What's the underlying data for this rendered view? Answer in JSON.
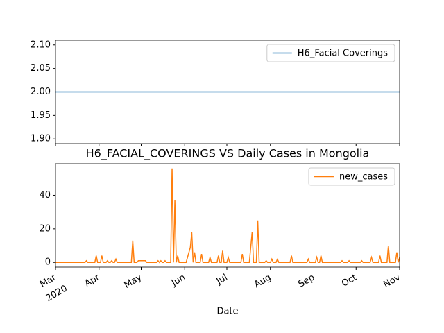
{
  "chart_data": [
    {
      "type": "line",
      "x": [
        0,
        245
      ],
      "series": [
        {
          "name": "H6_Facial Coverings",
          "color": "#1f77b4",
          "values": [
            2,
            2
          ]
        }
      ],
      "xlim": [
        0,
        245
      ],
      "ylim": [
        1.89,
        2.11
      ],
      "yticks": [
        {
          "value": 1.9,
          "label": "1.90"
        },
        1.95,
        {
          "value": 2.0,
          "label": "2.00"
        },
        2.05,
        {
          "value": 2.1,
          "label": "2.10"
        }
      ],
      "legend": "upper right"
    },
    {
      "type": "line",
      "title": "H6_FACIAL_COVERINGS VS Daily Cases in Mongolia",
      "xlabel": "Date",
      "x_year_label": "2020",
      "x": [
        0,
        21,
        22,
        23,
        28,
        29,
        30,
        32,
        33,
        34,
        36,
        37,
        38,
        39,
        40,
        41,
        42,
        43,
        44,
        54,
        55,
        56,
        58,
        59,
        64,
        65,
        72,
        73,
        74,
        75,
        76,
        77,
        78,
        79,
        82,
        83,
        84,
        85,
        86,
        87,
        88,
        93,
        96,
        97,
        98,
        99,
        100,
        103,
        104,
        105,
        109,
        110,
        111,
        115,
        116,
        117,
        118,
        119,
        120,
        122,
        123,
        124,
        132,
        133,
        134,
        138,
        140,
        141,
        143,
        144,
        145,
        149,
        150,
        151,
        153,
        154,
        155,
        157,
        158,
        159,
        167,
        168,
        169,
        179,
        180,
        181,
        185,
        186,
        187,
        188,
        189,
        190,
        203,
        204,
        205,
        208,
        209,
        210,
        217,
        218,
        219,
        224,
        225,
        226,
        230,
        231,
        232,
        236,
        237,
        238,
        242,
        243,
        244,
        245
      ],
      "series": [
        {
          "name": "new_cases",
          "color": "#ff7f0e",
          "values": [
            0,
            0,
            1,
            0,
            0,
            4,
            0,
            0,
            4,
            0,
            0,
            1,
            0,
            0,
            1,
            0,
            0,
            2,
            0,
            0,
            13,
            0,
            0,
            1,
            1,
            0,
            0,
            1,
            0,
            1,
            0,
            0,
            1,
            0,
            0,
            56,
            0,
            37,
            0,
            4,
            0,
            0,
            9,
            18,
            0,
            6,
            0,
            0,
            5,
            0,
            0,
            3,
            0,
            0,
            4,
            0,
            0,
            7,
            0,
            0,
            3,
            0,
            0,
            5,
            0,
            0,
            18,
            0,
            0,
            25,
            0,
            0,
            1,
            0,
            0,
            2,
            0,
            0,
            2,
            0,
            0,
            4,
            0,
            0,
            2,
            0,
            0,
            3,
            0,
            0,
            4,
            0,
            0,
            1,
            0,
            0,
            1,
            0,
            0,
            1,
            0,
            0,
            3,
            0,
            0,
            4,
            0,
            0,
            10,
            0,
            0,
            6,
            0,
            3
          ]
        }
      ],
      "xlim": [
        0,
        245
      ],
      "xticks": [
        {
          "value": 0,
          "label": "Mar"
        },
        {
          "value": 31,
          "label": "Apr"
        },
        {
          "value": 61,
          "label": "May"
        },
        {
          "value": 92,
          "label": "Jun"
        },
        {
          "value": 122,
          "label": "Jul"
        },
        {
          "value": 153,
          "label": "Aug"
        },
        {
          "value": 184,
          "label": "Sep"
        },
        {
          "value": 214,
          "label": "Oct"
        },
        {
          "value": 245,
          "label": "Nov"
        }
      ],
      "ylim": [
        -2.8,
        58.8
      ],
      "yticks": [
        0,
        20,
        40
      ],
      "legend": "upper right"
    }
  ]
}
